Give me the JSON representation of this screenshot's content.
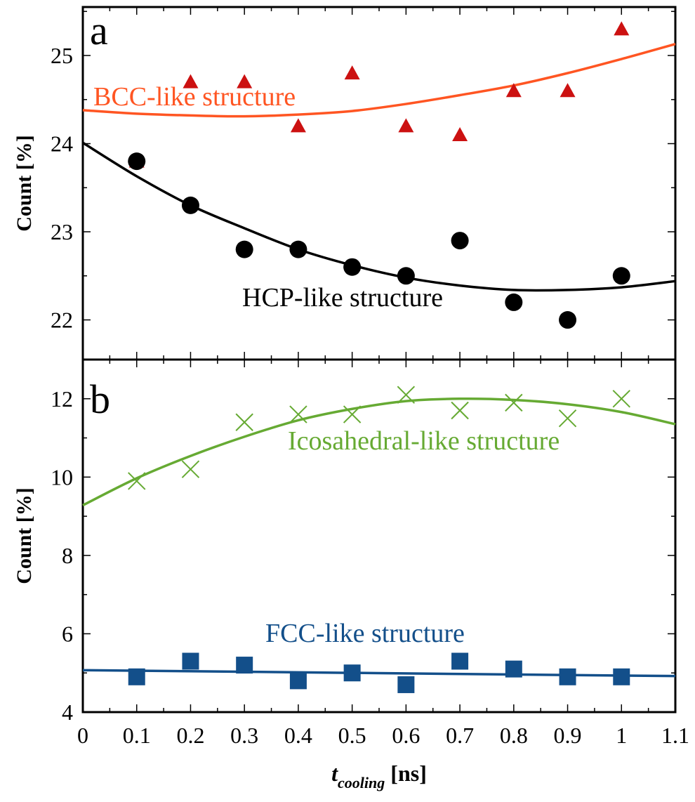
{
  "chart_data": [
    {
      "type": "scatter",
      "panel_label": "a",
      "ylabel": "Count [%]",
      "ylim": [
        21.55,
        25.55
      ],
      "xlim": [
        0,
        1.1
      ],
      "yticks": [
        22,
        23,
        24,
        25
      ],
      "series": [
        {
          "annotation": "BCC-like structure",
          "marker": "triangle",
          "marker_color": "#cc1111",
          "fit_color": "#ff5522",
          "x": [
            0.1,
            0.2,
            0.3,
            0.4,
            0.5,
            0.6,
            0.7,
            0.8,
            0.9,
            1.0
          ],
          "y": [
            23.8,
            24.7,
            24.7,
            24.2,
            24.8,
            24.2,
            24.1,
            24.6,
            24.6,
            25.3
          ],
          "fit": {
            "x": [
              0,
              0.1,
              0.2,
              0.3,
              0.4,
              0.5,
              0.6,
              0.7,
              0.8,
              0.9,
              1.0,
              1.1
            ],
            "y": [
              24.38,
              24.34,
              24.32,
              24.31,
              24.33,
              24.37,
              24.45,
              24.55,
              24.66,
              24.8,
              24.96,
              25.13
            ]
          }
        },
        {
          "annotation": "HCP-like structure",
          "marker": "circle",
          "marker_color": "#000000",
          "fit_color": "#000000",
          "x": [
            0.1,
            0.2,
            0.3,
            0.4,
            0.5,
            0.6,
            0.7,
            0.8,
            0.9,
            1.0
          ],
          "y": [
            23.8,
            23.3,
            22.8,
            22.8,
            22.6,
            22.5,
            22.9,
            22.2,
            22.0,
            22.5
          ],
          "fit": {
            "x": [
              0,
              0.1,
              0.2,
              0.3,
              0.4,
              0.5,
              0.6,
              0.7,
              0.8,
              0.9,
              1.0,
              1.1
            ],
            "y": [
              24.01,
              23.63,
              23.3,
              23.04,
              22.8,
              22.62,
              22.48,
              22.39,
              22.34,
              22.34,
              22.37,
              22.44
            ]
          }
        }
      ]
    },
    {
      "type": "scatter",
      "panel_label": "b",
      "ylabel": "Count [%]",
      "xlabel_main": "t",
      "xlabel_sub": "cooling",
      "xlabel_unit": " [ns]",
      "ylim": [
        4,
        13.0
      ],
      "xlim": [
        0,
        1.1
      ],
      "yticks": [
        4,
        6,
        8,
        10,
        12
      ],
      "xticks": [
        0,
        0.1,
        0.2,
        0.3,
        0.4,
        0.5,
        0.6,
        0.7,
        0.8,
        0.9,
        1,
        1.1
      ],
      "series": [
        {
          "annotation": "Icosahedral-like structure",
          "marker": "x",
          "marker_color": "#66aa33",
          "fit_color": "#66aa33",
          "x": [
            0.1,
            0.2,
            0.3,
            0.4,
            0.5,
            0.6,
            0.7,
            0.8,
            0.9,
            1.0
          ],
          "y": [
            9.9,
            10.2,
            11.4,
            11.6,
            11.6,
            12.1,
            11.7,
            11.9,
            11.5,
            12.0
          ],
          "fit": {
            "x": [
              0,
              0.1,
              0.2,
              0.3,
              0.4,
              0.5,
              0.6,
              0.7,
              0.8,
              0.9,
              1.0,
              1.1
            ],
            "y": [
              9.28,
              9.97,
              10.54,
              11.03,
              11.45,
              11.74,
              11.94,
              12.0,
              11.97,
              11.86,
              11.66,
              11.35
            ]
          }
        },
        {
          "annotation": "FCC-like structure",
          "marker": "square",
          "marker_color": "#134f8a",
          "fit_color": "#134f8a",
          "x": [
            0.1,
            0.2,
            0.3,
            0.4,
            0.5,
            0.6,
            0.7,
            0.8,
            0.9,
            1.0
          ],
          "y": [
            4.9,
            5.3,
            5.2,
            4.8,
            5.0,
            4.7,
            5.3,
            5.1,
            4.9,
            4.9
          ],
          "fit": {
            "x": [
              0,
              1.1
            ],
            "y": [
              5.07,
              4.92
            ]
          }
        }
      ]
    }
  ]
}
